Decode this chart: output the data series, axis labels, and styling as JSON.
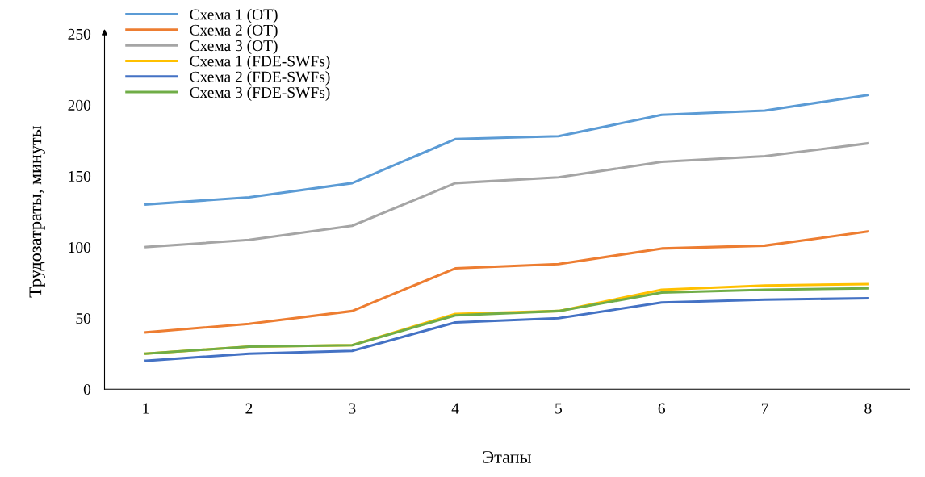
{
  "chart_data": {
    "type": "line",
    "xlabel": "Этапы",
    "ylabel": "Трудозатраты, минуты",
    "categories": [
      "1",
      "2",
      "3",
      "4",
      "5",
      "6",
      "7",
      "8"
    ],
    "ylim": [
      0,
      250
    ],
    "yticks": [
      0,
      50,
      100,
      150,
      200,
      250
    ],
    "grid": false,
    "legend": "top left",
    "marker": "none",
    "line_style": "solid",
    "series": [
      {
        "name": "Схема 1 (OT)",
        "color": "#5b9bd5",
        "values": [
          130,
          135,
          145,
          176,
          178,
          193,
          196,
          207
        ]
      },
      {
        "name": "Схема 2 (OT)",
        "color": "#ed7d31",
        "values": [
          40,
          46,
          55,
          85,
          88,
          99,
          101,
          111
        ]
      },
      {
        "name": "Схема 3 (OT)",
        "color": "#a5a5a5",
        "values": [
          100,
          105,
          115,
          145,
          149,
          160,
          164,
          173
        ]
      },
      {
        "name": "Схема 1 (FDE-SWFs)",
        "color": "#ffc000",
        "values": [
          25,
          30,
          31,
          53,
          55,
          70,
          73,
          74
        ]
      },
      {
        "name": "Схема 2 (FDE-SWFs)",
        "color": "#4472c4",
        "values": [
          20,
          25,
          27,
          47,
          50,
          61,
          63,
          64
        ]
      },
      {
        "name": "Схема 3 (FDE-SWFs)",
        "color": "#70ad47",
        "values": [
          25,
          30,
          31,
          52,
          55,
          68,
          70,
          71
        ]
      }
    ]
  }
}
